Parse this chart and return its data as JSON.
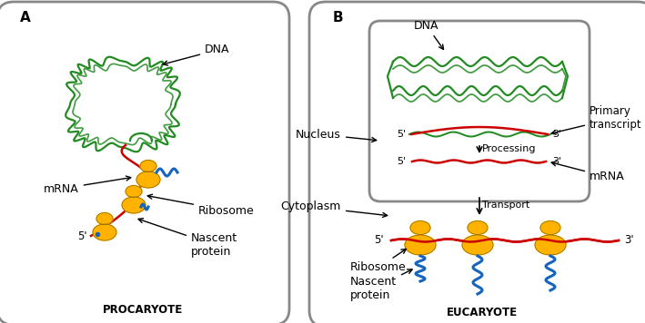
{
  "bg_color": "#ffffff",
  "cell_outline_color": "#888888",
  "dna_color": "#228B22",
  "mrna_color": "#cc0000",
  "ribosome_color": "#FFB300",
  "protein_color": "#1565C0",
  "title_A": "A",
  "title_B": "B",
  "label_procaryote": "PROCARYOTE",
  "label_eucaryote": "EUCARYOTE",
  "label_dna": "DNA",
  "label_mrna": "mRNA",
  "label_ribosome": "Ribosome",
  "label_nascent": "Nascent\nprotein",
  "label_nucleus": "Nucleus",
  "label_cytoplasm": "Cytoplasm",
  "label_primary": "Primary\ntranscript",
  "label_processing": "Processing",
  "label_transport": "Transport",
  "label_5prime": "5'",
  "label_3prime": "3'",
  "figw": 7.09,
  "figh": 3.56,
  "dpi": 100
}
